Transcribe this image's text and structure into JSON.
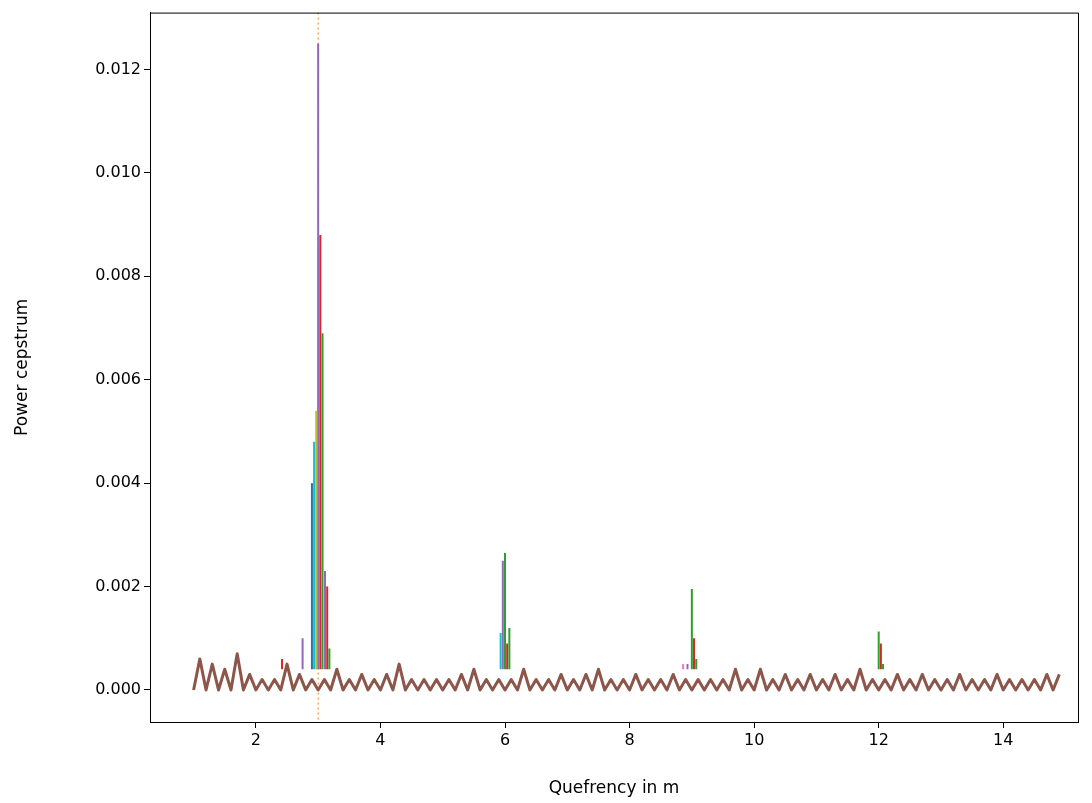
{
  "chart_data": {
    "type": "line",
    "xlabel": "Quefrency in m",
    "ylabel": "Power cepstrum",
    "marker": "none",
    "xlim": [
      0.3,
      15.2
    ],
    "ylim": [
      -0.00062,
      0.0131
    ],
    "xticks": [
      2,
      4,
      6,
      8,
      10,
      12,
      14
    ],
    "yticks": [
      {
        "value": 0,
        "label": "0.000"
      },
      {
        "value": 0.002,
        "label": "0.002"
      },
      {
        "value": 0.004,
        "label": "0.004"
      },
      {
        "value": 0.006,
        "label": "0.006"
      },
      {
        "value": 0.008,
        "label": "0.008"
      },
      {
        "value": 0.01,
        "label": "0.010"
      },
      {
        "value": 0.012,
        "label": "0.012"
      }
    ],
    "ref_lines": [
      {
        "axis": "x",
        "value": 3,
        "color": "#ff7f0e",
        "line_style": "dotted"
      }
    ],
    "series": [
      {
        "color": "#9467bd",
        "x": [
          2.75,
          2.75,
          2.8,
          3.0,
          3.0,
          3.05,
          3.11,
          3.11,
          5.9,
          5.965,
          5.965,
          8.5,
          8.93,
          8.93
        ],
        "values": [
          0.0004,
          0.001,
          null,
          0.0004,
          0.0125,
          null,
          0.0004,
          0.0023,
          null,
          0.0004,
          0.0025,
          null,
          0.0004,
          0.0005
        ]
      },
      {
        "color": "#d62728",
        "x": [
          2.42,
          2.42,
          2.7,
          3.035,
          3.035,
          3.1,
          3.145,
          3.145,
          5,
          6.035,
          6.035,
          8,
          9.035,
          9.035,
          11,
          12.035,
          12.035
        ],
        "values": [
          0.0004,
          0.0006,
          null,
          0.0004,
          0.0088,
          null,
          0.0004,
          0.002,
          null,
          0.0004,
          0.0009,
          null,
          0.0004,
          0.001,
          null,
          0.0004,
          0.0009
        ]
      },
      {
        "color": "#2ca02c",
        "x": [
          3.07,
          3.07,
          3.1,
          3.18,
          3.18,
          5,
          6,
          6,
          6.03,
          6.07,
          6.07,
          8,
          9,
          9,
          9.03,
          9.07,
          9.07,
          11,
          12,
          12,
          12.03,
          12.07,
          12.07
        ],
        "values": [
          0.0004,
          0.0069,
          null,
          0.0004,
          0.0008,
          null,
          0.0004,
          0.00265,
          null,
          0.0004,
          0.0012,
          null,
          0.0004,
          0.00195,
          null,
          0.0004,
          0.0006,
          null,
          0.0004,
          0.00113,
          null,
          0.0004,
          0.0005
        ]
      },
      {
        "color": "#bcbd22",
        "x": [
          2.97,
          2.97
        ],
        "values": [
          0.0004,
          0.0054
        ]
      },
      {
        "color": "#17becf",
        "x": [
          2.935,
          2.935,
          4,
          5.93,
          5.93
        ],
        "values": [
          0.0004,
          0.0048,
          null,
          0.0004,
          0.0011
        ]
      },
      {
        "color": "#1f77b4",
        "x": [
          2.9,
          2.9
        ],
        "values": [
          0.0004,
          0.004
        ]
      },
      {
        "color": "#e377c2",
        "x": [
          8.86,
          8.86
        ],
        "values": [
          0.0004,
          0.0005
        ]
      },
      {
        "color": "#8c564b",
        "x": [
          1,
          1.1,
          1.2,
          1.3,
          1.4,
          1.5,
          1.6,
          1.7,
          1.8,
          1.9,
          2,
          2.1,
          2.2,
          2.3,
          2.4,
          2.5,
          2.6,
          2.7,
          2.8,
          2.9,
          3,
          3.1,
          3.2,
          3.3,
          3.4,
          3.5,
          3.6,
          3.7,
          3.8,
          3.9,
          4,
          4.1,
          4.2,
          4.3,
          4.4,
          4.5,
          4.6,
          4.7,
          4.8,
          4.9,
          5,
          5.1,
          5.2,
          5.3,
          5.4,
          5.5,
          5.6,
          5.7,
          5.8,
          5.9,
          6,
          6.1,
          6.2,
          6.3,
          6.4,
          6.5,
          6.6,
          6.7,
          6.8,
          6.9,
          7,
          7.1,
          7.2,
          7.3,
          7.4,
          7.5,
          7.6,
          7.7,
          7.8,
          7.9,
          8,
          8.1,
          8.2,
          8.3,
          8.4,
          8.5,
          8.6,
          8.7,
          8.8,
          8.9,
          9,
          9.1,
          9.2,
          9.3,
          9.4,
          9.5,
          9.6,
          9.7,
          9.8,
          9.9,
          10,
          10.1,
          10.2,
          10.3,
          10.4,
          10.5,
          10.6,
          10.7,
          10.8,
          10.9,
          11,
          11.1,
          11.2,
          11.3,
          11.4,
          11.5,
          11.6,
          11.7,
          11.8,
          11.9,
          12,
          12.1,
          12.2,
          12.3,
          12.4,
          12.5,
          12.6,
          12.7,
          12.8,
          12.9,
          13,
          13.1,
          13.2,
          13.3,
          13.4,
          13.5,
          13.6,
          13.7,
          13.8,
          13.9,
          14,
          14.1,
          14.2,
          14.3,
          14.4,
          14.5,
          14.6,
          14.7,
          14.8,
          14.9
        ],
        "values": [
          0,
          0.0006,
          0,
          0.0005,
          0,
          0.0004,
          0,
          0.0007,
          0,
          0.0003,
          0,
          0.0002,
          0,
          0.0002,
          0,
          0.0005,
          0,
          0.0003,
          0,
          0.0002,
          0,
          0.0002,
          0,
          0.0004,
          0,
          0.0002,
          0,
          0.0003,
          0,
          0.0002,
          0,
          0.0003,
          0,
          0.0005,
          0,
          0.0002,
          0,
          0.0002,
          0,
          0.0002,
          0,
          0.0002,
          0,
          0.0003,
          0,
          0.0004,
          0,
          0.0002,
          0,
          0.0002,
          0,
          0.0002,
          0,
          0.0004,
          0,
          0.0002,
          0,
          0.0002,
          0,
          0.0003,
          0,
          0.0002,
          0,
          0.0003,
          0,
          0.0004,
          0,
          0.0002,
          0,
          0.0002,
          0,
          0.0003,
          0,
          0.0002,
          0,
          0.0002,
          0,
          0.0003,
          0,
          0.0002,
          0,
          0.0002,
          0,
          0.0002,
          0,
          0.0002,
          0,
          0.0004,
          0,
          0.0002,
          0,
          0.0004,
          0,
          0.0002,
          0,
          0.0003,
          0,
          0.0002,
          0,
          0.0003,
          0,
          0.0002,
          0,
          0.0003,
          0,
          0.0002,
          0,
          0.0004,
          0,
          0.0002,
          0,
          0.0002,
          0,
          0.0003,
          0,
          0.0002,
          0,
          0.0003,
          0,
          0.0002,
          0,
          0.0002,
          0,
          0.0003,
          0,
          0.0002,
          0,
          0.0002,
          0,
          0.0003,
          0,
          0.0002,
          0,
          0.0002,
          0,
          0.0002,
          0,
          0.0003,
          0,
          0.0003
        ]
      }
    ]
  }
}
